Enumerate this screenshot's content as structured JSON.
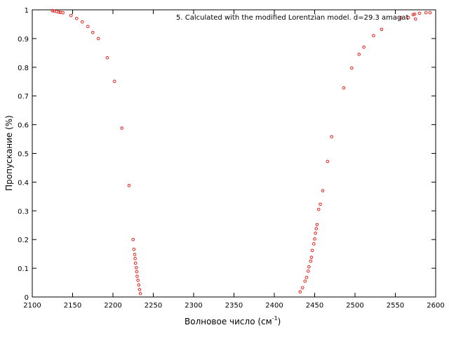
{
  "chart_data": {
    "type": "scatter",
    "title": "",
    "xlabel": "Волновое число (см",
    "xlabel_sup": "-1",
    "xlabel_end": ")",
    "ylabel": "Пропускание (%)",
    "xlim": [
      2100,
      2600
    ],
    "ylim": [
      0,
      1
    ],
    "xticks": [
      2100,
      2150,
      2200,
      2250,
      2300,
      2350,
      2400,
      2450,
      2500,
      2550,
      2600
    ],
    "yticks": [
      0,
      0.1,
      0.2,
      0.3,
      0.4,
      0.5,
      0.6,
      0.7,
      0.8,
      0.9,
      1
    ],
    "ytick_labels": [
      "0",
      "0.1",
      "0.2",
      "0.3",
      "0.4",
      "0.5",
      "0.6",
      "0.7",
      "0.8",
      "0.9",
      "1"
    ],
    "grid": false,
    "legend_position": "top-right",
    "marker_color": "#e8201a",
    "series": [
      {
        "name": "5. Calculated with the modified Lorentzian model. d=29.3 amagat",
        "points": [
          [
            2125,
            0.997
          ],
          [
            2127,
            0.996
          ],
          [
            2130,
            0.994
          ],
          [
            2133,
            0.992
          ],
          [
            2135,
            0.991
          ],
          [
            2138,
            0.99
          ],
          [
            2148,
            0.98
          ],
          [
            2155,
            0.97
          ],
          [
            2162,
            0.958
          ],
          [
            2169,
            0.942
          ],
          [
            2175,
            0.921
          ],
          [
            2182,
            0.9
          ],
          [
            2193,
            0.833
          ],
          [
            2202,
            0.751
          ],
          [
            2211,
            0.588
          ],
          [
            2220,
            0.388
          ],
          [
            2225,
            0.2
          ],
          [
            2226,
            0.166
          ],
          [
            2227,
            0.148
          ],
          [
            2227.5,
            0.134
          ],
          [
            2228,
            0.118
          ],
          [
            2229,
            0.102
          ],
          [
            2229.5,
            0.088
          ],
          [
            2230,
            0.072
          ],
          [
            2231,
            0.058
          ],
          [
            2232,
            0.042
          ],
          [
            2233,
            0.026
          ],
          [
            2234,
            0.012
          ],
          [
            2432,
            0.018
          ],
          [
            2435,
            0.032
          ],
          [
            2438,
            0.055
          ],
          [
            2440,
            0.068
          ],
          [
            2442,
            0.09
          ],
          [
            2443,
            0.105
          ],
          [
            2445,
            0.125
          ],
          [
            2446,
            0.138
          ],
          [
            2447,
            0.162
          ],
          [
            2449,
            0.185
          ],
          [
            2450,
            0.202
          ],
          [
            2451,
            0.222
          ],
          [
            2452,
            0.238
          ],
          [
            2453,
            0.252
          ],
          [
            2455,
            0.305
          ],
          [
            2457,
            0.323
          ],
          [
            2460,
            0.37
          ],
          [
            2466,
            0.472
          ],
          [
            2471,
            0.558
          ],
          [
            2486,
            0.728
          ],
          [
            2496,
            0.797
          ],
          [
            2505,
            0.845
          ],
          [
            2511,
            0.87
          ],
          [
            2523,
            0.91
          ],
          [
            2533,
            0.932
          ],
          [
            2557,
            0.972
          ],
          [
            2572,
            0.983
          ],
          [
            2574,
            0.985
          ],
          [
            2575,
            0.968
          ],
          [
            2580,
            0.988
          ],
          [
            2588,
            0.99
          ],
          [
            2593,
            0.99
          ]
        ]
      }
    ]
  }
}
